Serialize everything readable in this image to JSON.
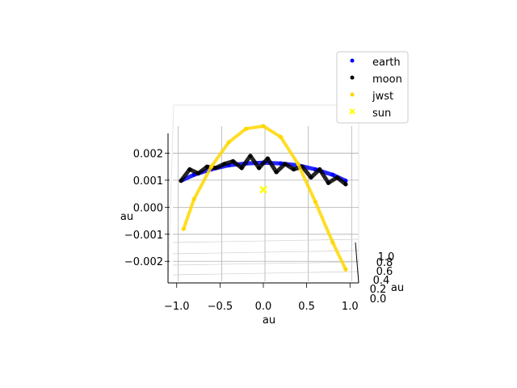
{
  "chart_data": {
    "type": "scatter",
    "projection": "3d",
    "xlabel": "au",
    "ylabel": "au",
    "zlabel": "au",
    "x_ticks": [
      "−1.0",
      "−0.5",
      "0.0",
      "0.5",
      "1.0"
    ],
    "y_ticks": [
      "0.0",
      "0.2",
      "0.4",
      "0.6",
      "0.8",
      "1.0"
    ],
    "z_ticks": [
      "−0.002",
      "−0.001",
      "0.000",
      "0.001",
      "0.002"
    ],
    "xlim": [
      -1.1,
      1.1
    ],
    "zlim": [
      -0.0028,
      0.003
    ],
    "grid": true,
    "legend_position": "top-right",
    "series": [
      {
        "name": "earth",
        "color": "#0000ff",
        "marker": "circle",
        "x": [
          -0.95,
          -0.8,
          -0.6,
          -0.4,
          -0.2,
          0.0,
          0.2,
          0.4,
          0.6,
          0.8,
          0.95
        ],
        "z": [
          0.00098,
          0.0012,
          0.0014,
          0.00155,
          0.00162,
          0.00165,
          0.00162,
          0.00155,
          0.0014,
          0.0012,
          0.00098
        ]
      },
      {
        "name": "moon",
        "color": "#000000",
        "marker": "circle",
        "x": [
          -0.95,
          -0.85,
          -0.75,
          -0.65,
          -0.55,
          -0.45,
          -0.35,
          -0.25,
          -0.15,
          -0.05,
          0.05,
          0.15,
          0.25,
          0.35,
          0.45,
          0.55,
          0.65,
          0.75,
          0.85,
          0.95
        ],
        "z": [
          0.00098,
          0.0014,
          0.00125,
          0.0015,
          0.00145,
          0.0016,
          0.0017,
          0.00145,
          0.0019,
          0.00145,
          0.0018,
          0.0013,
          0.0016,
          0.0014,
          0.0015,
          0.0011,
          0.0014,
          0.0009,
          0.0011,
          0.00085
        ]
      },
      {
        "name": "jwst",
        "color": "#ffd700",
        "marker": "circle",
        "x": [
          -0.92,
          -0.8,
          -0.6,
          -0.4,
          -0.2,
          0.0,
          0.2,
          0.4,
          0.6,
          0.8,
          0.95
        ],
        "z": [
          -0.0008,
          0.0003,
          0.0015,
          0.0024,
          0.0029,
          0.003,
          0.0026,
          0.0016,
          0.0002,
          -0.0013,
          -0.0023
        ]
      },
      {
        "name": "sun",
        "color": "#ffff00",
        "marker": "x",
        "x": [
          0.0
        ],
        "z": [
          0.00065
        ]
      }
    ]
  }
}
